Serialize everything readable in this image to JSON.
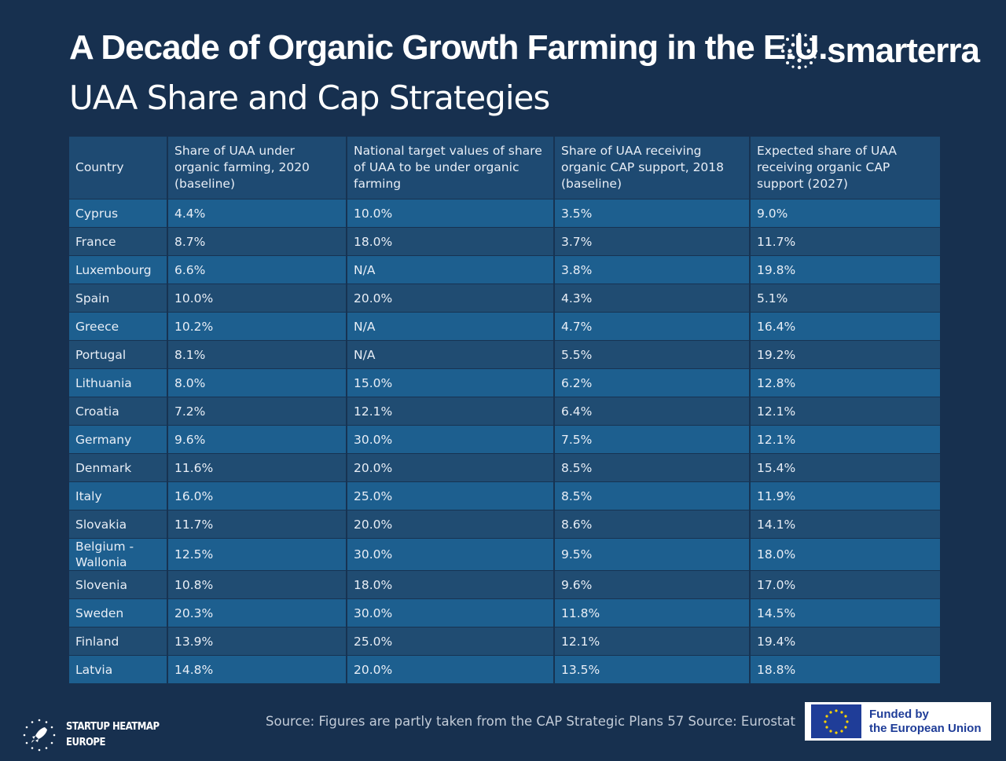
{
  "header": {
    "title": "A Decade of Organic Growth Farming in the E.U.",
    "subtitle": "UAA Share and Cap Strategies",
    "brand": "smarterra"
  },
  "table": {
    "columns": [
      "Country",
      "Share of UAA under organic farming, 2020 (baseline)",
      "National target values of share of UAA to be under organic farming",
      "Share of UAA receiving organic CAP support, 2018 (baseline)",
      "Expected share of UAA receiving organic CAP support (2027)"
    ],
    "rows": [
      [
        "Cyprus",
        "4.4%",
        "10.0%",
        "3.5%",
        "9.0%"
      ],
      [
        "France",
        "8.7%",
        "18.0%",
        "3.7%",
        "11.7%"
      ],
      [
        "Luxembourg",
        "6.6%",
        "N/A",
        "3.8%",
        "19.8%"
      ],
      [
        "Spain",
        "10.0%",
        "20.0%",
        "4.3%",
        "5.1%"
      ],
      [
        "Greece",
        "10.2%",
        "N/A",
        "4.7%",
        "16.4%"
      ],
      [
        "Portugal",
        "8.1%",
        "N/A",
        "5.5%",
        "19.2%"
      ],
      [
        "Lithuania",
        "8.0%",
        "15.0%",
        "6.2%",
        "12.8%"
      ],
      [
        "Croatia",
        "7.2%",
        "12.1%",
        "6.4%",
        "12.1%"
      ],
      [
        "Germany",
        "9.6%",
        "30.0%",
        "7.5%",
        "12.1%"
      ],
      [
        "Denmark",
        "11.6%",
        "20.0%",
        "8.5%",
        "15.4%"
      ],
      [
        "Italy",
        "16.0%",
        "25.0%",
        "8.5%",
        "11.9%"
      ],
      [
        "Slovakia",
        "11.7%",
        "20.0%",
        "8.6%",
        "14.1%"
      ],
      [
        "Belgium - Wallonia",
        "12.5%",
        "30.0%",
        "9.5%",
        "18.0%"
      ],
      [
        "Slovenia",
        "10.8%",
        "18.0%",
        "9.6%",
        "17.0%"
      ],
      [
        "Sweden",
        "20.3%",
        "30.0%",
        "11.8%",
        "14.5%"
      ],
      [
        "Finland",
        "13.9%",
        "25.0%",
        "12.1%",
        "19.4%"
      ],
      [
        "Latvia",
        "14.8%",
        "20.0%",
        "13.5%",
        "18.8%"
      ]
    ]
  },
  "footer": {
    "source": "Source:  Figures are partly taken from the CAP Strategic Plans 57 Source: Eurostat",
    "heatmap_line1": "STARTUP HEATMAP",
    "heatmap_line2": "EUROPE",
    "eu_line1": "Funded by",
    "eu_line2": "the European Union"
  },
  "colors": {
    "background": "#17304f",
    "header_row": "#1e4a72",
    "row_light": "#1d5f8f",
    "row_dark": "#204c72",
    "eu_blue": "#1f3d98"
  },
  "icons": [
    "smarterra-logo-icon",
    "rocket-stars-icon",
    "eu-flag-icon"
  ]
}
